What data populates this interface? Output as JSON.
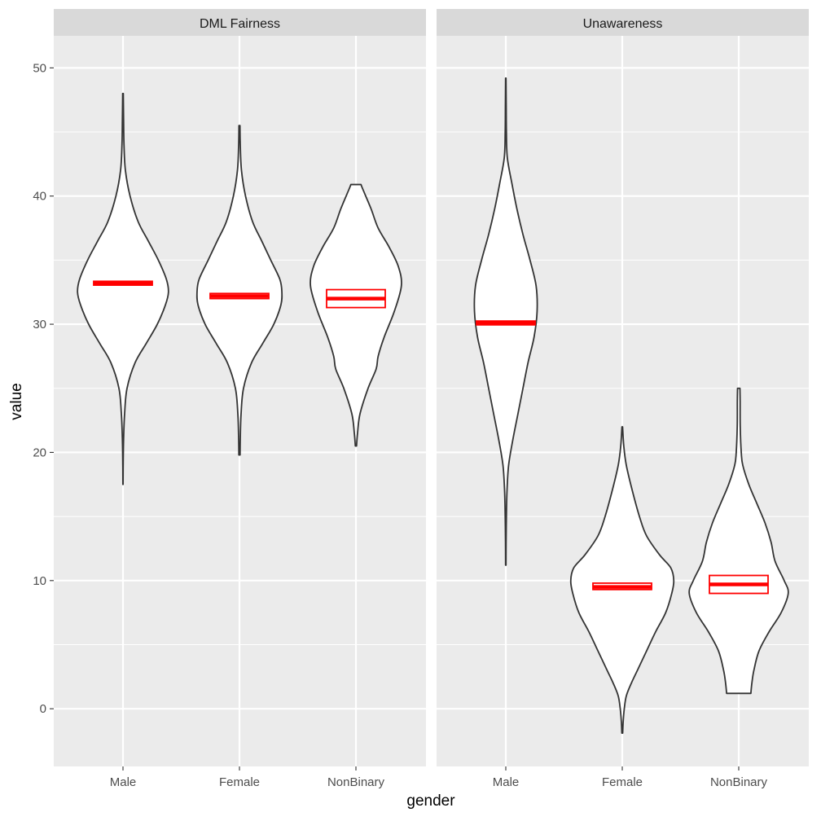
{
  "chart_data": {
    "type": "violin",
    "xlabel": "gender",
    "ylabel": "value",
    "ylim": [
      -4.5,
      52.5
    ],
    "y_ticks": [
      0,
      10,
      20,
      30,
      40,
      50
    ],
    "y_tick_labels": [
      "0",
      "10",
      "20",
      "30",
      "40",
      "50"
    ],
    "categories": [
      "Male",
      "Female",
      "NonBinary"
    ],
    "colors": {
      "panel_bg": "#ebebeb",
      "strip_bg": "#d9d9d9",
      "grid": "#ffffff",
      "violin_fill": "#ffffff",
      "violin_stroke": "#333333",
      "summary": "#ff0000"
    },
    "panels": [
      {
        "title": "DML Fairness",
        "violins": [
          {
            "category": "Male",
            "profile": [
              [
                17.5,
                0.1
              ],
              [
                19,
                0.2
              ],
              [
                21,
                0.6
              ],
              [
                23,
                1.6
              ],
              [
                25,
                4
              ],
              [
                27,
                12
              ],
              [
                28.5,
                23
              ],
              [
                30,
                34
              ],
              [
                31.5,
                42
              ],
              [
                32.5,
                45
              ],
              [
                33.5,
                43
              ],
              [
                35,
                35
              ],
              [
                36.5,
                25
              ],
              [
                38,
                15
              ],
              [
                40,
                7
              ],
              [
                42,
                2.4
              ],
              [
                44,
                1
              ],
              [
                46,
                0.6
              ],
              [
                48,
                0.3
              ]
            ],
            "summary": {
              "mean": 33.2,
              "lower": 33.05,
              "upper": 33.35
            }
          },
          {
            "category": "Female",
            "profile": [
              [
                19.8,
                0.6
              ],
              [
                21,
                0.8
              ],
              [
                23,
                1.6
              ],
              [
                25,
                4
              ],
              [
                27,
                12
              ],
              [
                28.5,
                23
              ],
              [
                30,
                34
              ],
              [
                31.5,
                41
              ],
              [
                32.5,
                42
              ],
              [
                33.5,
                40
              ],
              [
                35,
                31
              ],
              [
                36.5,
                22
              ],
              [
                38,
                13
              ],
              [
                40,
                6
              ],
              [
                42,
                2
              ],
              [
                44,
                0.8
              ],
              [
                45.5,
                0.5
              ]
            ],
            "summary": {
              "mean": 32.2,
              "lower": 32.0,
              "upper": 32.4
            }
          },
          {
            "category": "NonBinary",
            "profile": [
              [
                20.5,
                0.6
              ],
              [
                21.5,
                1.6
              ],
              [
                23,
                4
              ],
              [
                25,
                12
              ],
              [
                26.5,
                20
              ],
              [
                27.5,
                22
              ],
              [
                29,
                28
              ],
              [
                31,
                38
              ],
              [
                33,
                45
              ],
              [
                34.5,
                42
              ],
              [
                36,
                33
              ],
              [
                37.5,
                22
              ],
              [
                39,
                15
              ],
              [
                40.5,
                7
              ],
              [
                40.9,
                5
              ]
            ],
            "summary": {
              "mean": 32.0,
              "lower": 31.3,
              "upper": 32.7
            }
          }
        ]
      },
      {
        "title": "Unawareness",
        "violins": [
          {
            "category": "Male",
            "profile": [
              [
                11.2,
                0.2
              ],
              [
                13,
                0.3
              ],
              [
                15,
                0.6
              ],
              [
                17,
                1.2
              ],
              [
                19,
                2.8
              ],
              [
                21,
                7
              ],
              [
                23,
                12
              ],
              [
                25,
                17
              ],
              [
                27,
                22
              ],
              [
                29,
                28
              ],
              [
                31,
                31
              ],
              [
                33,
                30
              ],
              [
                35,
                24
              ],
              [
                37,
                17
              ],
              [
                39,
                11
              ],
              [
                41,
                6
              ],
              [
                43,
                1.5
              ],
              [
                45,
                0.6
              ],
              [
                47,
                0.4
              ],
              [
                49.2,
                0.2
              ]
            ],
            "summary": {
              "mean": 30.1,
              "lower": 29.95,
              "upper": 30.25
            }
          },
          {
            "category": "Female",
            "profile": [
              [
                -1.9,
                0.4
              ],
              [
                -1,
                0.9
              ],
              [
                0,
                2
              ],
              [
                1,
                4
              ],
              [
                2,
                9
              ],
              [
                3,
                15
              ],
              [
                4.5,
                24
              ],
              [
                6,
                33
              ],
              [
                7.5,
                43
              ],
              [
                9,
                49
              ],
              [
                10,
                51
              ],
              [
                11,
                48
              ],
              [
                12,
                37
              ],
              [
                13.5,
                24
              ],
              [
                15,
                17
              ],
              [
                17,
                10
              ],
              [
                19,
                4
              ],
              [
                20.5,
                1.5
              ],
              [
                22,
                0.3
              ]
            ],
            "summary": {
              "mean": 9.5,
              "lower": 9.3,
              "upper": 9.8
            }
          },
          {
            "category": "NonBinary",
            "profile": [
              [
                1.2,
                12
              ],
              [
                2,
                13
              ],
              [
                3,
                15
              ],
              [
                4.5,
                20
              ],
              [
                6,
                30
              ],
              [
                7.5,
                42
              ],
              [
                9,
                49
              ],
              [
                10,
                45
              ],
              [
                11.5,
                36
              ],
              [
                13,
                32
              ],
              [
                14.5,
                26
              ],
              [
                16,
                18
              ],
              [
                17.5,
                10
              ],
              [
                19,
                4
              ],
              [
                20,
                2.5
              ],
              [
                22,
                1.5
              ],
              [
                24,
                1.4
              ],
              [
                25,
                1.2
              ]
            ],
            "summary": {
              "mean": 9.7,
              "lower": 9.0,
              "upper": 10.4
            }
          }
        ]
      }
    ]
  }
}
